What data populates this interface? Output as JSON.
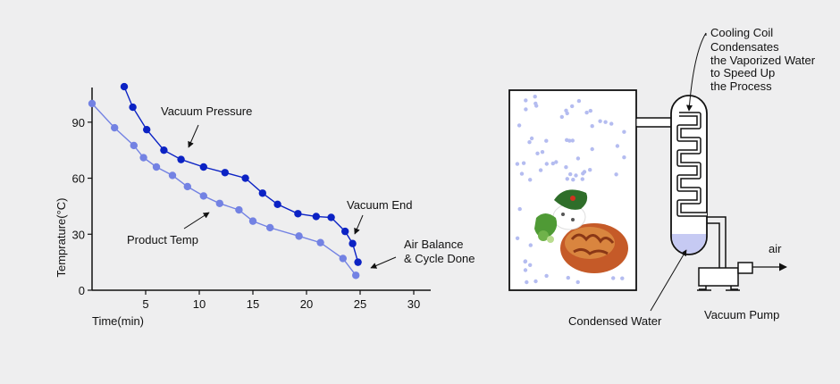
{
  "chart_data": {
    "type": "line",
    "ylabel": "Temprature(°C)",
    "xlabel": "Time(min)",
    "x_ticks": [
      "5",
      "10",
      "15",
      "20",
      "25",
      "30"
    ],
    "y_ticks": [
      "0",
      "30",
      "60",
      "90"
    ],
    "xlim": [
      0,
      30
    ],
    "ylim": [
      0,
      110
    ],
    "grid": false,
    "legend": "none",
    "series": [
      {
        "name": "Vacuum Pressure",
        "color": "#0b22c4",
        "points": [
          [
            3,
            109
          ],
          [
            3.8,
            98
          ],
          [
            5.1,
            86
          ],
          [
            6.7,
            75
          ],
          [
            8.3,
            70
          ],
          [
            10.4,
            66
          ],
          [
            12.4,
            63
          ],
          [
            14.3,
            60
          ],
          [
            15.9,
            52
          ],
          [
            17.3,
            46
          ],
          [
            19.2,
            41
          ],
          [
            20.9,
            39.5
          ],
          [
            22.3,
            39
          ],
          [
            23.6,
            31.5
          ],
          [
            24.3,
            25
          ],
          [
            24.8,
            15
          ]
        ]
      },
      {
        "name": "Product Temp",
        "color": "#7382e3",
        "points": [
          [
            0,
            100
          ],
          [
            2.1,
            87
          ],
          [
            3.9,
            77.5
          ],
          [
            4.8,
            71
          ],
          [
            6,
            66
          ],
          [
            7.5,
            61.5
          ],
          [
            8.9,
            55.5
          ],
          [
            10.4,
            50.5
          ],
          [
            11.9,
            46.5
          ],
          [
            13.7,
            43
          ],
          [
            15,
            37
          ],
          [
            16.6,
            33.5
          ],
          [
            19.3,
            29
          ],
          [
            21.3,
            25.5
          ],
          [
            23.4,
            17
          ],
          [
            24.6,
            8
          ]
        ]
      }
    ],
    "annotations": [
      "Vacuum Pressure",
      "Product Temp",
      "Vacuum End",
      "Air Balance",
      "& Cycle Done"
    ]
  },
  "diagram": {
    "coil_note": [
      "Cooling Coil",
      "Condensates",
      "the Vaporized Water",
      "to Speed Up",
      "the Process"
    ],
    "condensed_water": "Condensed Water",
    "vacuum_pump": "Vacuum Pump",
    "air": "air",
    "vapor_color": "#b4bcf0",
    "water_color": "#c6caf3"
  }
}
